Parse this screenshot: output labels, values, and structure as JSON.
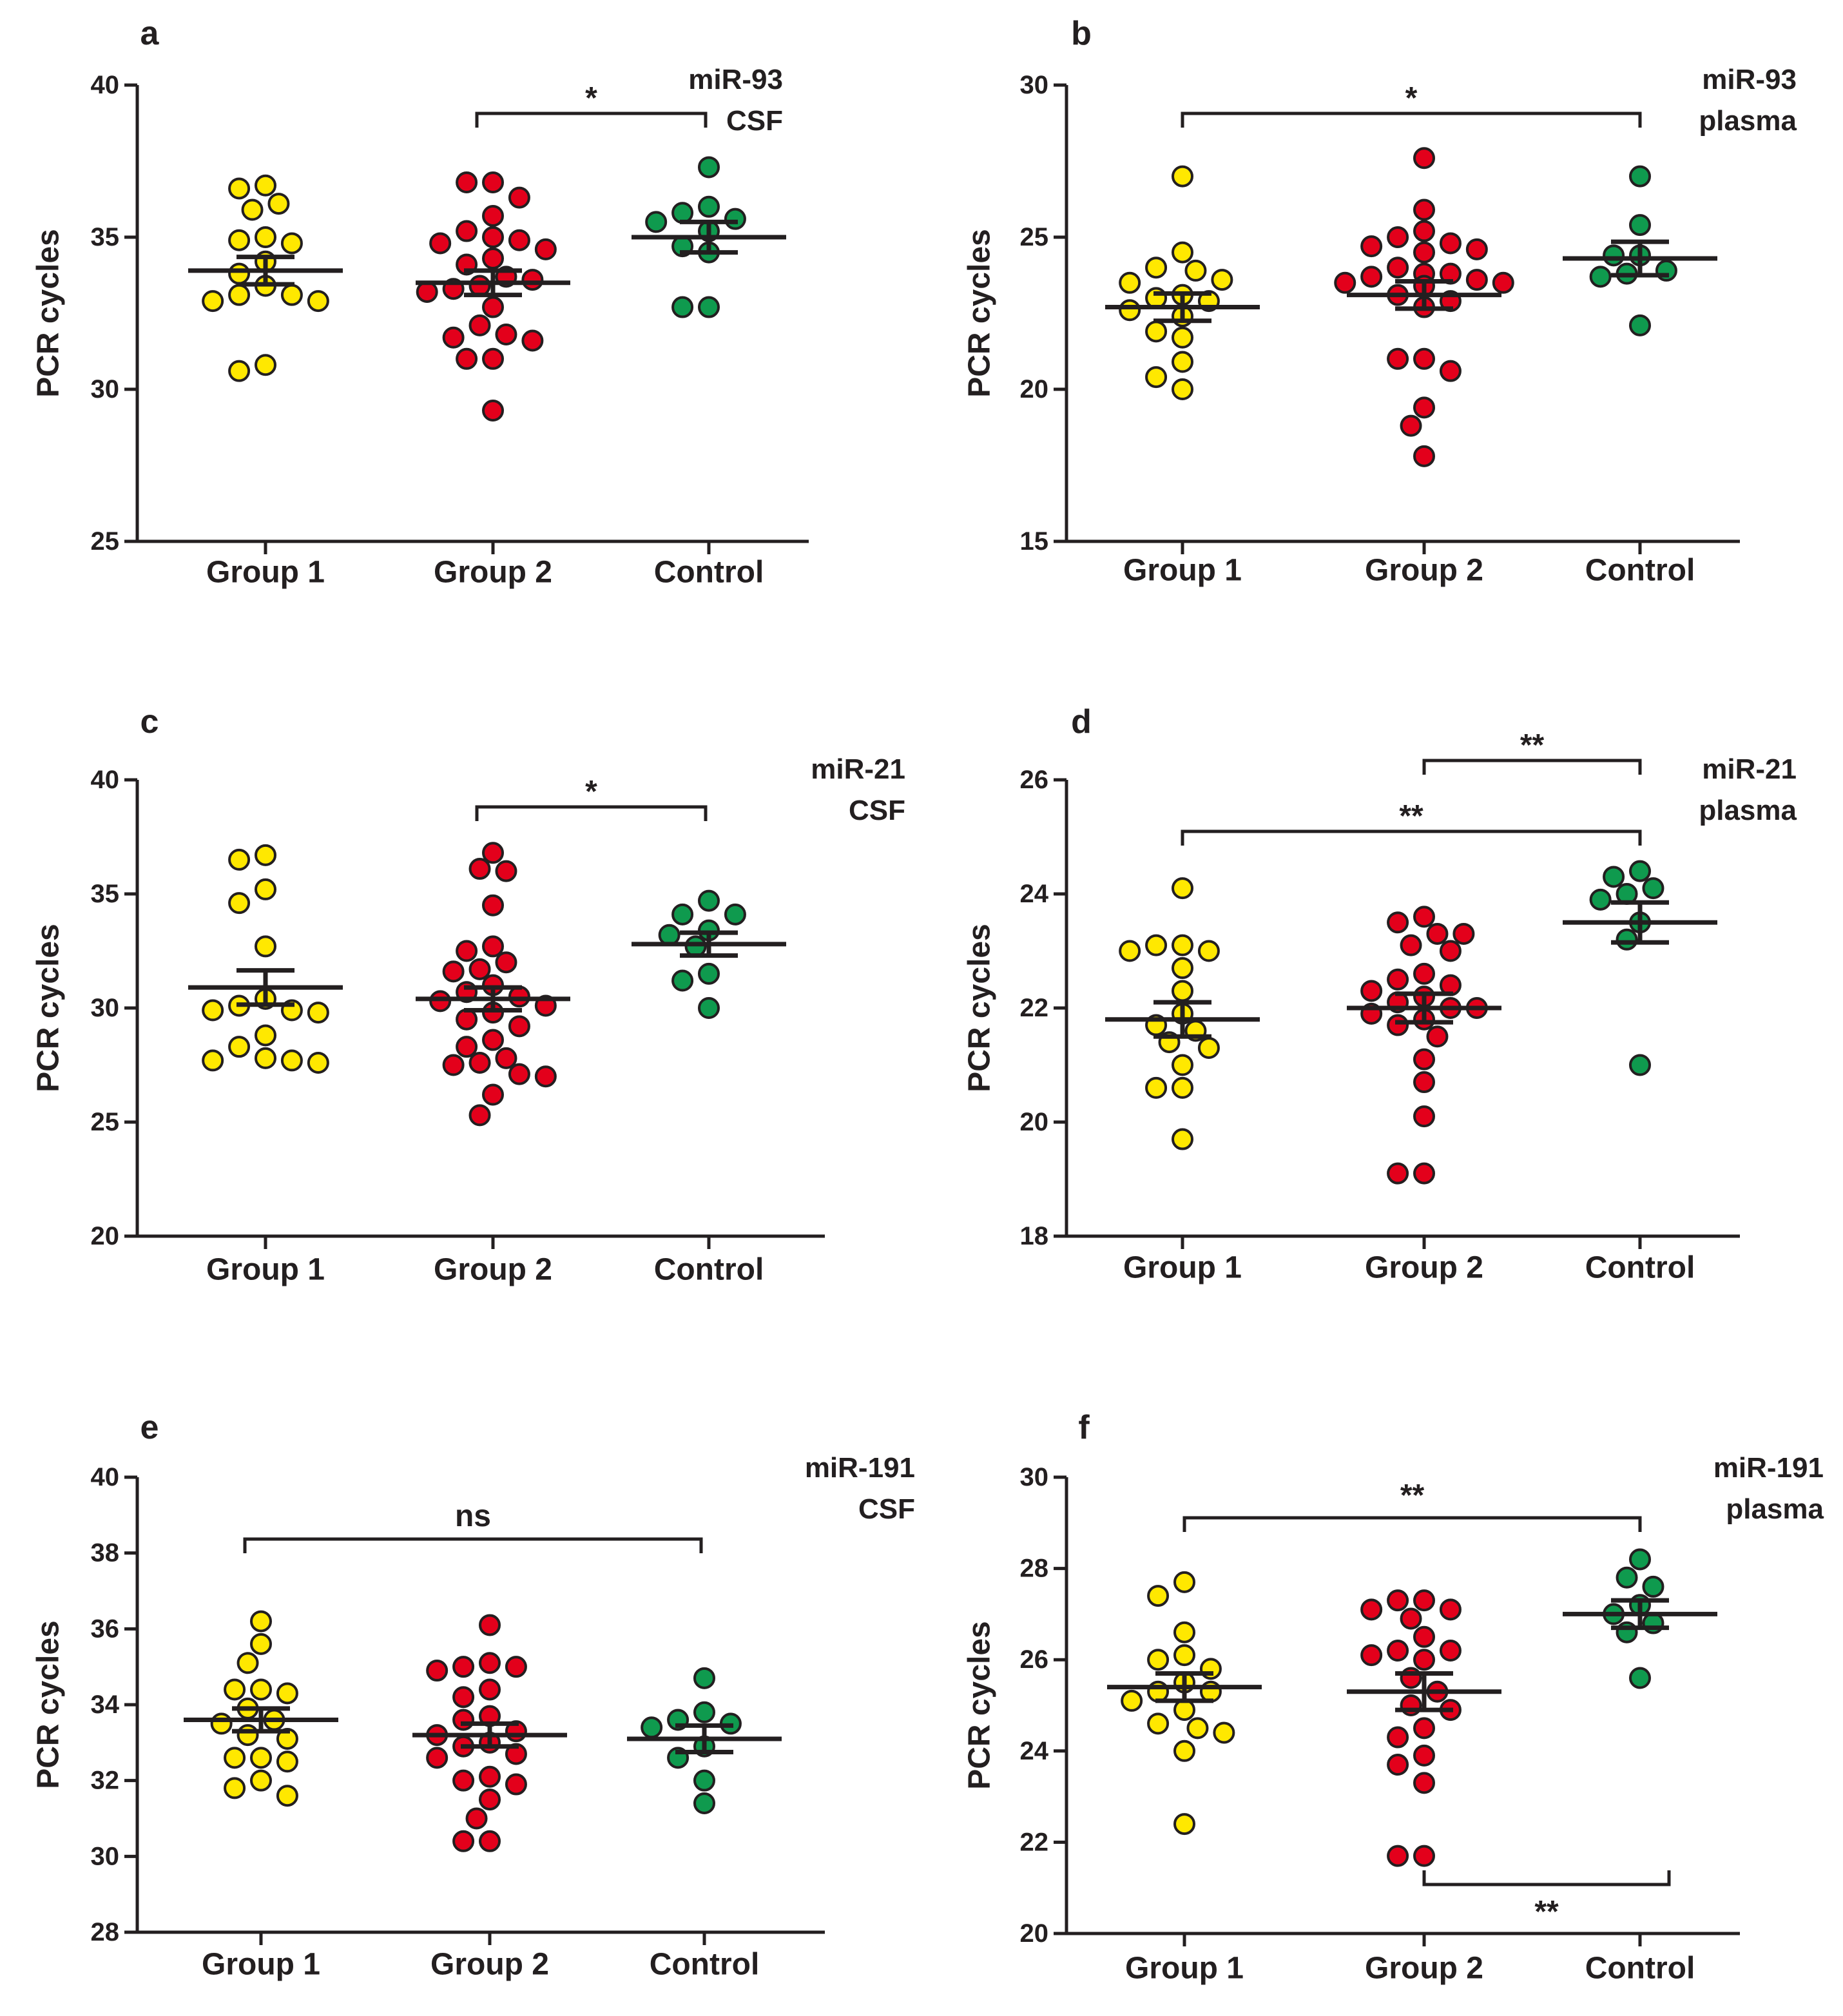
{
  "figure": {
    "colors": {
      "group1": "#ffe800",
      "group2": "#e3001b",
      "control": "#0f9a4e",
      "ink": "#231f20"
    }
  },
  "chart_data": [
    {
      "panel_label": "a",
      "type": "scatter",
      "title_lines": [
        "miR-93",
        "CSF"
      ],
      "ylabel": "PCR cycles",
      "ylim": [
        25,
        40
      ],
      "yticks": [
        25,
        30,
        35,
        40
      ],
      "ytick_labels": [
        "25",
        "30",
        "35",
        "40"
      ],
      "categories": [
        "Group 1",
        "Group 2",
        "Control"
      ],
      "series": [
        {
          "name": "Group 1",
          "mean": 33.9,
          "sem": 0.45,
          "values": [
            36.7,
            36.6,
            36.1,
            35.9,
            35.0,
            34.9,
            34.8,
            34.2,
            33.8,
            33.4,
            33.1,
            33.1,
            32.9,
            32.9,
            30.8,
            30.6
          ]
        },
        {
          "name": "Group 2",
          "mean": 33.5,
          "sem": 0.4,
          "values": [
            36.8,
            36.8,
            36.3,
            35.7,
            35.2,
            35.0,
            34.9,
            34.8,
            34.6,
            34.3,
            34.1,
            33.7,
            33.6,
            33.4,
            33.3,
            33.2,
            32.7,
            32.1,
            31.8,
            31.7,
            31.6,
            31.0,
            31.0,
            29.3
          ]
        },
        {
          "name": "Control",
          "mean": 35.0,
          "sem": 0.5,
          "values": [
            37.3,
            36.0,
            35.8,
            35.6,
            35.5,
            35.2,
            34.7,
            34.5,
            32.7,
            32.7
          ]
        }
      ],
      "comparisons": [
        {
          "from": "Group 2",
          "to": "Control",
          "label": "*",
          "position": "above"
        }
      ]
    },
    {
      "panel_label": "b",
      "type": "scatter",
      "title_lines": [
        "miR-93",
        "plasma"
      ],
      "ylabel": "PCR cycles",
      "ylim": [
        15,
        30
      ],
      "yticks": [
        15,
        20,
        25,
        30
      ],
      "ytick_labels": [
        "15",
        "20",
        "25",
        "30"
      ],
      "categories": [
        "Group 1",
        "Group 2",
        "Control"
      ],
      "series": [
        {
          "name": "Group 1",
          "mean": 22.7,
          "sem": 0.45,
          "values": [
            27.0,
            24.5,
            24.0,
            23.9,
            23.6,
            23.5,
            23.1,
            23.0,
            22.9,
            22.6,
            22.4,
            21.9,
            21.7,
            20.9,
            20.4,
            20.0
          ]
        },
        {
          "name": "Group 2",
          "mean": 23.1,
          "sem": 0.45,
          "values": [
            27.6,
            25.9,
            25.2,
            25.0,
            24.8,
            24.7,
            24.6,
            24.5,
            24.0,
            23.8,
            23.8,
            23.7,
            23.6,
            23.5,
            23.5,
            23.4,
            23.1,
            22.9,
            22.7,
            21.0,
            21.0,
            20.6,
            19.4,
            18.8,
            17.8
          ]
        },
        {
          "name": "Control",
          "mean": 24.3,
          "sem": 0.55,
          "values": [
            27.0,
            25.4,
            24.4,
            24.4,
            23.9,
            23.8,
            23.7,
            22.1
          ]
        }
      ],
      "comparisons": [
        {
          "from": "Group 1",
          "to": "Control",
          "label": "*",
          "position": "above"
        }
      ]
    },
    {
      "panel_label": "c",
      "type": "scatter",
      "title_lines": [
        "miR-21",
        "CSF"
      ],
      "ylabel": "PCR cycles",
      "ylim": [
        20,
        40
      ],
      "yticks": [
        20,
        25,
        30,
        35,
        40
      ],
      "ytick_labels": [
        "20",
        "25",
        "30",
        "35",
        "40"
      ],
      "categories": [
        "Group 1",
        "Group 2",
        "Control"
      ],
      "series": [
        {
          "name": "Group 1",
          "mean": 30.9,
          "sem": 0.75,
          "values": [
            36.7,
            36.5,
            35.2,
            34.6,
            32.7,
            30.4,
            30.1,
            29.9,
            29.9,
            29.8,
            28.8,
            28.3,
            27.8,
            27.7,
            27.7,
            27.6
          ]
        },
        {
          "name": "Group 2",
          "mean": 30.4,
          "sem": 0.5,
          "values": [
            36.8,
            36.1,
            36.0,
            34.5,
            32.7,
            32.5,
            32.0,
            31.7,
            31.6,
            31.0,
            30.7,
            30.5,
            30.3,
            30.1,
            29.8,
            29.5,
            29.2,
            28.6,
            28.3,
            27.8,
            27.6,
            27.5,
            27.1,
            27.0,
            26.2,
            25.3
          ]
        },
        {
          "name": "Control",
          "mean": 32.8,
          "sem": 0.5,
          "values": [
            34.7,
            34.1,
            34.1,
            33.4,
            33.2,
            32.7,
            31.5,
            31.2,
            30.0
          ]
        }
      ],
      "comparisons": [
        {
          "from": "Group 2",
          "to": "Control",
          "label": "*",
          "position": "above"
        }
      ]
    },
    {
      "panel_label": "d",
      "type": "scatter",
      "title_lines": [
        "miR-21",
        "plasma"
      ],
      "ylabel": "PCR cycles",
      "ylim": [
        18,
        26
      ],
      "yticks": [
        18,
        20,
        22,
        24,
        26
      ],
      "ytick_labels": [
        "18",
        "20",
        "22",
        "24",
        "26"
      ],
      "categories": [
        "Group 1",
        "Group 2",
        "Control"
      ],
      "series": [
        {
          "name": "Group 1",
          "mean": 21.8,
          "sem": 0.3,
          "values": [
            24.1,
            23.1,
            23.1,
            23.0,
            23.0,
            22.7,
            22.3,
            21.9,
            21.7,
            21.6,
            21.4,
            21.3,
            21.0,
            20.6,
            20.6,
            19.7
          ]
        },
        {
          "name": "Group 2",
          "mean": 22.0,
          "sem": 0.25,
          "values": [
            23.6,
            23.5,
            23.3,
            23.3,
            23.1,
            23.0,
            22.6,
            22.5,
            22.4,
            22.3,
            22.2,
            22.1,
            22.0,
            22.0,
            21.9,
            21.8,
            21.7,
            21.5,
            21.1,
            20.7,
            20.1,
            19.1,
            19.1
          ]
        },
        {
          "name": "Control",
          "mean": 23.5,
          "sem": 0.35,
          "values": [
            24.4,
            24.3,
            24.1,
            24.0,
            23.9,
            23.5,
            23.2,
            21.0
          ]
        }
      ],
      "comparisons": [
        {
          "from": "Group 2",
          "to": "Control",
          "label": "**",
          "position": "above"
        },
        {
          "from": "Group 1",
          "to": "Control",
          "label": "**",
          "position": "above"
        }
      ]
    },
    {
      "panel_label": "e",
      "type": "scatter",
      "title_lines": [
        "miR-191",
        "CSF"
      ],
      "ylabel": "PCR cycles",
      "ylim": [
        28,
        40
      ],
      "yticks": [
        28,
        30,
        32,
        34,
        36,
        38,
        40
      ],
      "ytick_labels": [
        "28",
        "30",
        "32",
        "34",
        "36",
        "38",
        "40"
      ],
      "categories": [
        "Group 1",
        "Group 2",
        "Control"
      ],
      "series": [
        {
          "name": "Group 1",
          "mean": 33.6,
          "sem": 0.3,
          "values": [
            36.2,
            35.6,
            35.1,
            34.4,
            34.4,
            34.3,
            33.9,
            33.6,
            33.5,
            33.2,
            33.1,
            32.6,
            32.6,
            32.5,
            32.0,
            31.8,
            31.6
          ]
        },
        {
          "name": "Group 2",
          "mean": 33.2,
          "sem": 0.3,
          "values": [
            36.1,
            35.1,
            35.0,
            35.0,
            34.9,
            34.4,
            34.2,
            33.7,
            33.6,
            33.3,
            33.2,
            33.0,
            32.9,
            32.7,
            32.6,
            32.1,
            32.0,
            31.9,
            31.5,
            31.0,
            30.4,
            30.4
          ]
        },
        {
          "name": "Control",
          "mean": 33.1,
          "sem": 0.35,
          "values": [
            34.7,
            33.8,
            33.6,
            33.5,
            33.4,
            32.9,
            32.6,
            32.0,
            31.4
          ]
        }
      ],
      "comparisons": [
        {
          "from": "Group 1",
          "to": "Control",
          "label": "ns",
          "position": "above"
        }
      ]
    },
    {
      "panel_label": "f",
      "type": "scatter",
      "title_lines": [
        "miR-191",
        "plasma"
      ],
      "ylabel": "PCR cycles",
      "ylim": [
        20,
        30
      ],
      "yticks": [
        20,
        22,
        24,
        26,
        28,
        30
      ],
      "ytick_labels": [
        "20",
        "22",
        "24",
        "26",
        "28",
        "30"
      ],
      "categories": [
        "Group 1",
        "Group 2",
        "Control"
      ],
      "series": [
        {
          "name": "Group 1",
          "mean": 25.4,
          "sem": 0.3,
          "values": [
            27.7,
            27.4,
            26.6,
            26.1,
            26.0,
            25.8,
            25.5,
            25.3,
            25.3,
            25.1,
            24.9,
            24.6,
            24.5,
            24.4,
            24.0,
            22.4
          ]
        },
        {
          "name": "Group 2",
          "mean": 25.3,
          "sem": 0.4,
          "values": [
            27.3,
            27.3,
            27.1,
            27.1,
            26.9,
            26.5,
            26.2,
            26.2,
            26.1,
            26.0,
            25.6,
            25.3,
            25.0,
            24.9,
            24.5,
            24.3,
            23.9,
            23.7,
            23.3,
            21.7,
            21.7
          ]
        },
        {
          "name": "Control",
          "mean": 27.0,
          "sem": 0.3,
          "values": [
            28.2,
            27.8,
            27.6,
            27.2,
            27.0,
            26.8,
            26.6,
            25.6
          ]
        }
      ],
      "comparisons": [
        {
          "from": "Group 1",
          "to": "Control",
          "label": "**",
          "position": "above"
        },
        {
          "from": "Group 2",
          "to": "Control",
          "label": "**",
          "position": "below"
        }
      ]
    }
  ]
}
